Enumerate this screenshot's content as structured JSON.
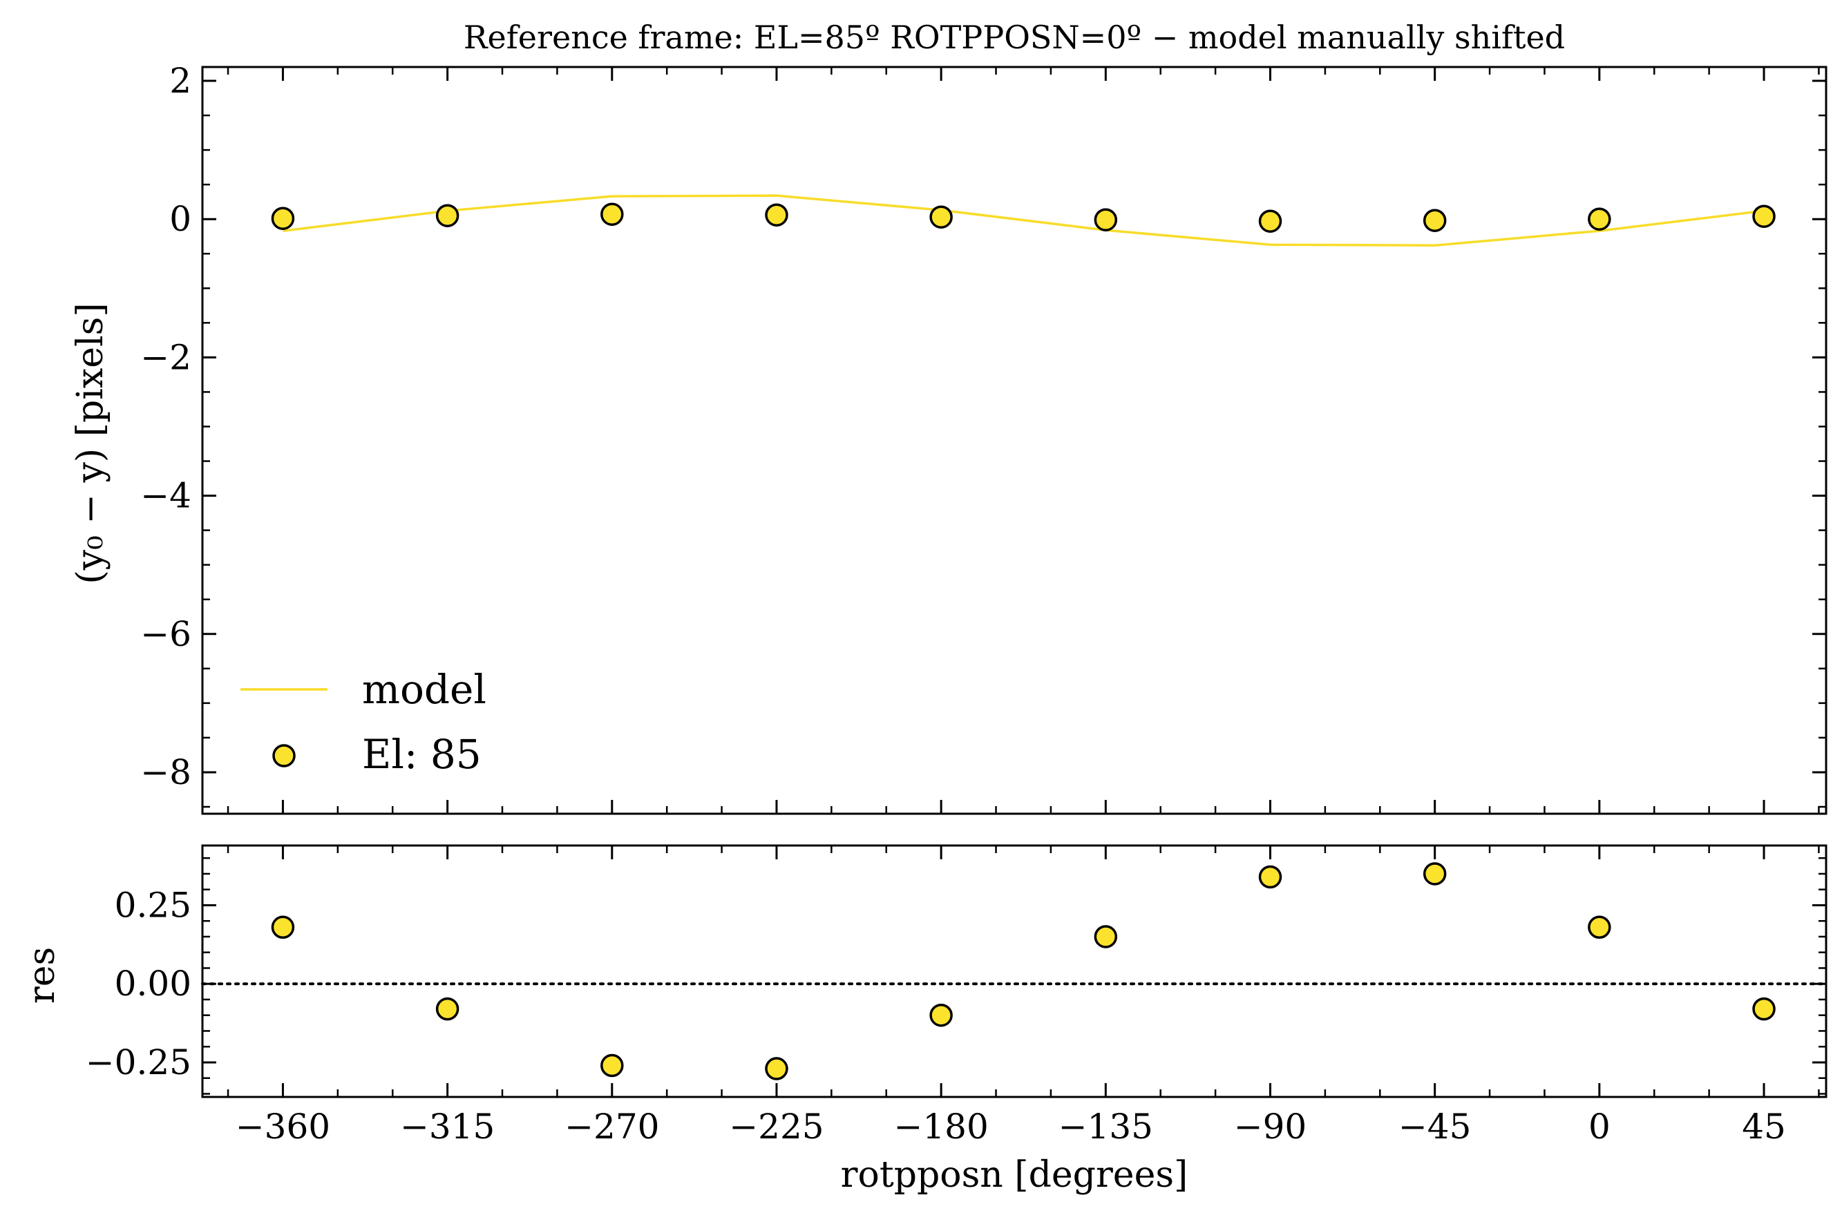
{
  "chart_data": [
    {
      "type": "line+scatter",
      "panel": "top",
      "title": "Reference frame: EL=85º ROTPPOSN=0º − model manually shifted",
      "xlabel": "",
      "ylabel": "(y₀ −  y) [pixels]",
      "xlim": [
        -382,
        62
      ],
      "ylim": [
        -8.6,
        2.2
      ],
      "yticks": [
        2,
        0,
        -2,
        -4,
        -6,
        -8
      ],
      "ytick_labels": [
        "2",
        "0",
        "−2",
        "−4",
        "−6",
        "−8"
      ],
      "legend_position": "lower-left",
      "series": [
        {
          "name": "model",
          "kind": "line",
          "color": "#f8dc2a",
          "x": [
            -360,
            -315,
            -270,
            -225,
            -180,
            -135,
            -90,
            -45,
            0,
            45
          ],
          "y": [
            -0.17,
            0.12,
            0.33,
            0.34,
            0.13,
            -0.16,
            -0.37,
            -0.38,
            -0.17,
            0.12
          ]
        },
        {
          "name": "El: 85",
          "kind": "scatter",
          "color": "#fbe22c",
          "edge_color": "#000000",
          "x": [
            -360,
            -315,
            -270,
            -225,
            -180,
            -135,
            -90,
            -45,
            0,
            45
          ],
          "y": [
            0.01,
            0.05,
            0.07,
            0.06,
            0.03,
            -0.01,
            -0.03,
            -0.02,
            0.0,
            0.04
          ]
        }
      ]
    },
    {
      "type": "scatter",
      "panel": "bottom",
      "xlabel": "rotpposn [degrees]",
      "ylabel": "res",
      "xlim": [
        -382,
        62
      ],
      "ylim": [
        -0.36,
        0.44
      ],
      "xticks": [
        -360,
        -315,
        -270,
        -225,
        -180,
        -135,
        -90,
        -45,
        0,
        45
      ],
      "xtick_labels": [
        "−360",
        "−315",
        "−270",
        "−225",
        "−180",
        "−135",
        "−90",
        "−45",
        "0",
        "45"
      ],
      "yticks": [
        0.25,
        0.0,
        -0.25
      ],
      "ytick_labels": [
        "0.25",
        "0.00",
        "−0.25"
      ],
      "reference_line": {
        "y": 0.0,
        "style": "dotted"
      },
      "series": [
        {
          "kind": "scatter",
          "color": "#fbe22c",
          "edge_color": "#000000",
          "x": [
            -360,
            -315,
            -270,
            -225,
            -180,
            -135,
            -90,
            -45,
            0,
            45
          ],
          "y": [
            0.18,
            -0.08,
            -0.26,
            -0.27,
            -0.1,
            0.15,
            0.34,
            0.35,
            0.18,
            -0.08
          ]
        }
      ]
    }
  ]
}
